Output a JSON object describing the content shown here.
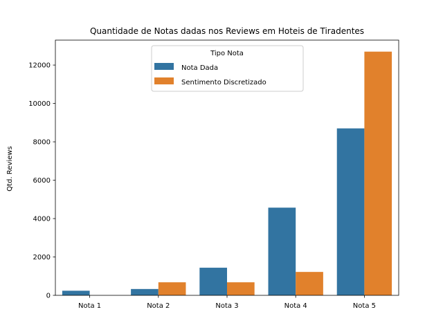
{
  "chart_data": {
    "type": "bar",
    "title": "Quantidade de Notas dadas nos Reviews em Hoteis de Tiradentes",
    "xlabel": "",
    "ylabel": "Qtd. Reviews",
    "categories": [
      "Nota 1",
      "Nota 2",
      "Nota 3",
      "Nota 4",
      "Nota 5"
    ],
    "series": [
      {
        "name": "Nota Dada",
        "color": "#3274a1",
        "values": [
          240,
          330,
          1440,
          4570,
          8700
        ]
      },
      {
        "name": "Sentimento Discretizado",
        "color": "#e1812c",
        "values": [
          0,
          680,
          680,
          1220,
          12700
        ]
      }
    ],
    "ylim": [
      0,
      13300
    ],
    "yticks": [
      0,
      2000,
      4000,
      6000,
      8000,
      10000,
      12000
    ],
    "grid": false,
    "legend": {
      "title": "Tipo Nota",
      "placement": "top-center"
    }
  }
}
